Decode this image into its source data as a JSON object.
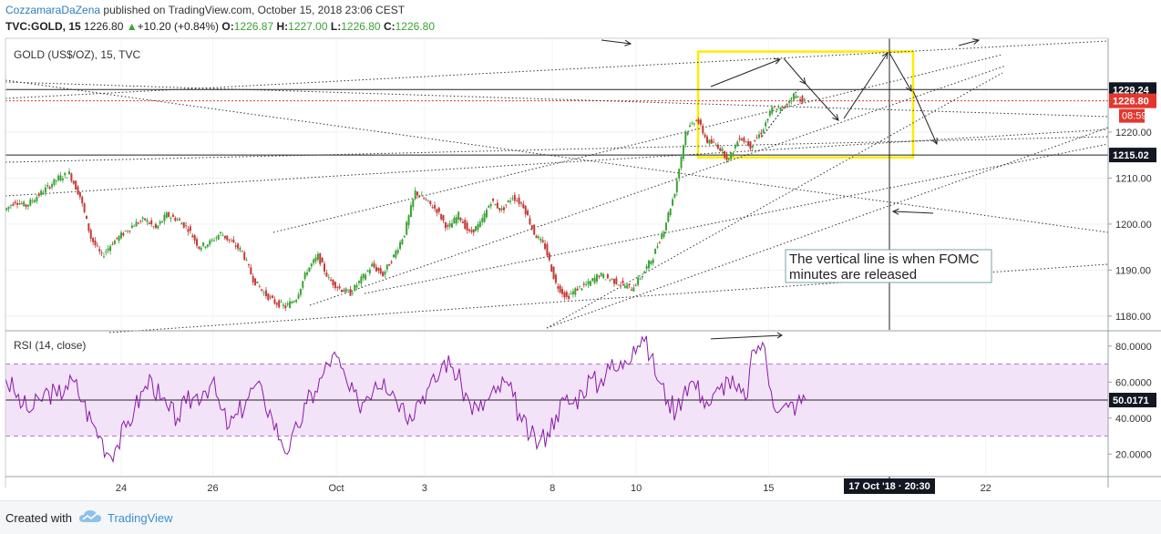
{
  "header": {
    "author": "CozzamaraDaZena",
    "published_text": "published on TradingView.com, October 15, 2018 23:06 CEST",
    "symbol_line": "TVC:GOLD, 15",
    "last": "1226.80",
    "change_arrow": "▲",
    "change": "+10.20 (+0.84%)",
    "o_label": "O:",
    "o_value": "1226.87",
    "h_label": "H:",
    "h_value": "1227.00",
    "l_label": "L:",
    "l_value": "1226.80",
    "c_label": "C:",
    "c_value": "1226.80"
  },
  "chart_data": [
    {
      "type": "line",
      "title": "GOLD (US$/OZ), 15, TVC",
      "ylim": [
        1177,
        1240
      ],
      "y_ticks": [
        1180,
        1190,
        1200,
        1210,
        1220
      ],
      "y_tick_labels": [
        "1180.00",
        "1190.00",
        "1200.00",
        "1210.00",
        "1220.00"
      ],
      "x_ticks": [
        {
          "label": "24",
          "t": 0.105
        },
        {
          "label": "26",
          "t": 0.188
        },
        {
          "label": "Oct",
          "t": 0.3
        },
        {
          "label": "3",
          "t": 0.38
        },
        {
          "label": "8",
          "t": 0.496
        },
        {
          "label": "10",
          "t": 0.572
        },
        {
          "label": "15",
          "t": 0.692
        },
        {
          "label": "22",
          "t": 0.889
        }
      ],
      "series": [
        {
          "values": [
            1203,
            1205,
            1204,
            1206,
            1208,
            1210,
            1211,
            1206,
            1197,
            1193,
            1196,
            1198,
            1200,
            1201,
            1199,
            1202,
            1201,
            1199,
            1195,
            1196,
            1198,
            1196,
            1194,
            1188,
            1185,
            1183,
            1182,
            1184,
            1190,
            1193,
            1188,
            1186,
            1185,
            1188,
            1191,
            1189,
            1193,
            1198,
            1207,
            1205,
            1203,
            1199,
            1202,
            1198,
            1200,
            1205,
            1203,
            1206,
            1204,
            1198,
            1195,
            1187,
            1184,
            1186,
            1187,
            1189,
            1188,
            1187,
            1186,
            1189,
            1193,
            1199,
            1207,
            1220,
            1223,
            1218,
            1217,
            1214,
            1219,
            1217,
            1220,
            1225,
            1225,
            1228,
            1226.8
          ]
        }
      ],
      "last_value": "1226.80",
      "price_tags": [
        {
          "label": "1229.24",
          "value": 1229.24,
          "style": "black"
        },
        {
          "label": "1226.80",
          "value": 1226.8,
          "style": "red"
        },
        {
          "label": "08:59",
          "style": "red-timer"
        },
        {
          "label": "1215.02",
          "value": 1215.02,
          "style": "black"
        }
      ],
      "horizontal_levels": [
        1229.24,
        1215.02
      ],
      "annotation": "The vertical line is when FOMC minutes are released",
      "crosshair_label": "17 Oct '18 · 20:30",
      "highlight_box": {
        "y_range": [
          1214.5,
          1237.5
        ]
      }
    },
    {
      "type": "line",
      "title": "RSI (14, close)",
      "ylim": [
        8,
        88
      ],
      "y_ticks": [
        20,
        40,
        60,
        80
      ],
      "y_tick_labels": [
        "20.0000",
        "40.0000",
        "60.0000",
        "80.0000"
      ],
      "bands": [
        30,
        70
      ],
      "series": [
        {
          "name": "RSI",
          "values": [
            62,
            55,
            47,
            44,
            50,
            55,
            52,
            58,
            60,
            49,
            38,
            30,
            20,
            25,
            35,
            45,
            55,
            62,
            50,
            44,
            40,
            48,
            52,
            55,
            60,
            45,
            35,
            42,
            50,
            58,
            52,
            40,
            28,
            22,
            35,
            48,
            55,
            65,
            75,
            68,
            55,
            48,
            52,
            60,
            62,
            55,
            48,
            42,
            50,
            56,
            60,
            72,
            68,
            58,
            48,
            44,
            50,
            54,
            60,
            52,
            38,
            30,
            26,
            32,
            42,
            50,
            48,
            55,
            62,
            58,
            70,
            66,
            72,
            80,
            85,
            74,
            60,
            50,
            44,
            58,
            60,
            52,
            48,
            56,
            62,
            55,
            50,
            78,
            82,
            55,
            44,
            46,
            48,
            50
          ]
        }
      ],
      "last_value": "50.0171",
      "price_tags": [
        {
          "label": "50.0171",
          "value": 50.0171,
          "style": "black"
        }
      ]
    }
  ],
  "footer": {
    "created_with": "Created with",
    "brand": "TradingView"
  },
  "colors": {
    "up": "#3aa335",
    "down": "#c33a37",
    "rsi": "#8a1aa8",
    "rsi_band_fill": "#f3e3f8",
    "highlight": "#ffeb00",
    "red_tag": "#e2372f",
    "link": "#2a7fc1"
  }
}
